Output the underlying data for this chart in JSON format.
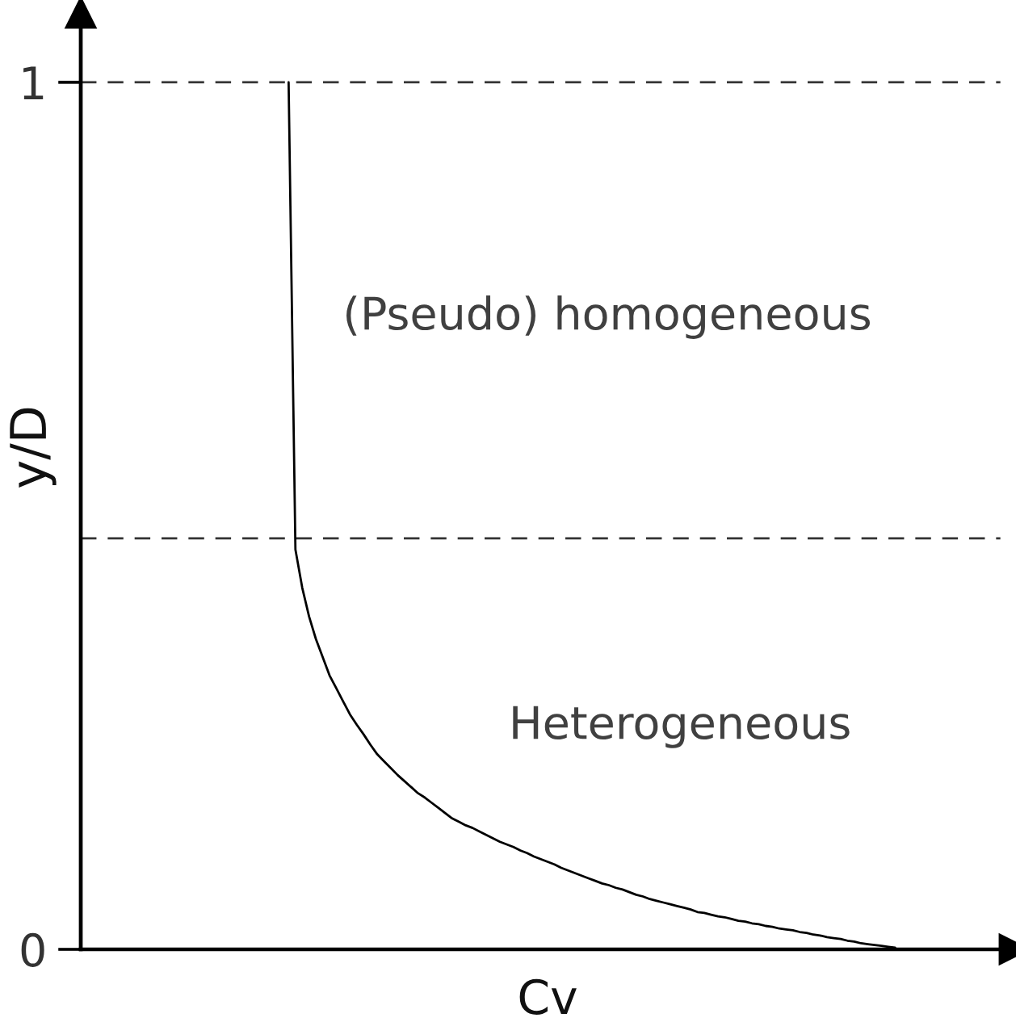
{
  "chart_data": {
    "type": "line",
    "xlabel": "Cv",
    "ylabel": "y/D",
    "categories": [
      null,
      null,
      null,
      null,
      null,
      null,
      null,
      null,
      null,
      null,
      null,
      null,
      null,
      null,
      null,
      null,
      null,
      null,
      null,
      null,
      null,
      null,
      null,
      null,
      null,
      null,
      null,
      null,
      null,
      null,
      null,
      null,
      null,
      null,
      null,
      null,
      null,
      null,
      null,
      null,
      null,
      null,
      null,
      null,
      null,
      null,
      null,
      null,
      null,
      null,
      null,
      null,
      null,
      null,
      null,
      null,
      null,
      null,
      null,
      null,
      null,
      null,
      null,
      null,
      null,
      null,
      null,
      null,
      null,
      null,
      null,
      null,
      null,
      null,
      null,
      null,
      null,
      null,
      null,
      null,
      null,
      null,
      null,
      null,
      null,
      null,
      null,
      null,
      null,
      null,
      null,
      null,
      null,
      null,
      null,
      null,
      null,
      null,
      null,
      null,
      null,
      null,
      null,
      null,
      null,
      null,
      null,
      null,
      null,
      null,
      null,
      null,
      null,
      null,
      null,
      null,
      null,
      null,
      null,
      null,
      null,
      null,
      null,
      null,
      null,
      null,
      null,
      null,
      null,
      null,
      null,
      null,
      null,
      null,
      null,
      null,
      null
    ],
    "series": [
      {
        "color": "#000000",
        "values": [
          null,
          null,
          null,
          null,
          null,
          null,
          null,
          null,
          null,
          null,
          null,
          null,
          null,
          null,
          null,
          null,
          null,
          null,
          null,
          null,
          null,
          null,
          null,
          null,
          null,
          null,
          null,
          null,
          null,
          null,
          1.0,
          0.461,
          0.417,
          0.384,
          0.358,
          0.337,
          0.316,
          0.301,
          0.286,
          0.271,
          0.259,
          0.248,
          0.236,
          0.225,
          0.217,
          0.209,
          0.201,
          0.194,
          0.187,
          0.18,
          0.175,
          0.169,
          0.163,
          0.157,
          0.151,
          0.147,
          0.143,
          0.14,
          0.136,
          0.132,
          0.128,
          0.124,
          0.121,
          0.118,
          0.114,
          0.111,
          0.107,
          0.104,
          0.101,
          0.098,
          0.094,
          0.091,
          0.088,
          0.085,
          0.082,
          0.079,
          0.076,
          0.074,
          0.071,
          0.069,
          0.066,
          0.063,
          0.061,
          0.058,
          0.056,
          0.054,
          0.052,
          0.05,
          0.048,
          0.046,
          0.043,
          0.042,
          0.04,
          0.038,
          0.037,
          0.035,
          0.033,
          0.032,
          0.03,
          0.029,
          0.027,
          0.026,
          0.024,
          0.023,
          0.022,
          0.02,
          0.019,
          0.017,
          0.016,
          0.014,
          0.013,
          0.012,
          0.01,
          0.009,
          0.007,
          0.006,
          0.005,
          0.004,
          0.003,
          0.002,
          null,
          null,
          null,
          null,
          null,
          null,
          null,
          null,
          null,
          null,
          null,
          null,
          null,
          null,
          null,
          null,
          null
        ]
      }
    ],
    "ylim": [
      0,
      1.08
    ],
    "yticks": [
      0,
      1
    ],
    "tick_labels": "y",
    "ref_lines": [
      {
        "axis": "y",
        "value": 1,
        "color": "#333333",
        "line_style": "dashed"
      },
      {
        "axis": "y",
        "value": 0.474,
        "color": "#333333",
        "line_style": "dashed"
      }
    ],
    "annotations": [
      "(Pseudo) homogeneous",
      "Heterogeneous"
    ]
  }
}
